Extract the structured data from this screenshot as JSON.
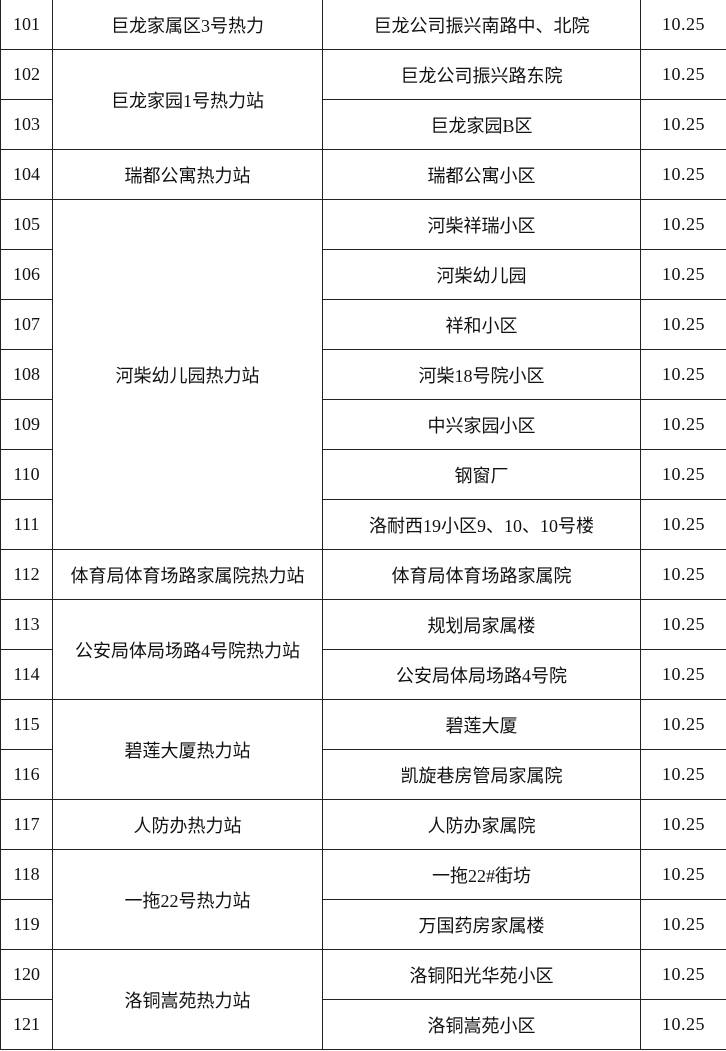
{
  "groups": [
    {
      "station": "巨龙家属区3号热力",
      "items": [
        {
          "no": "101",
          "community": "巨龙公司振兴南路中、北院",
          "value": "10.25"
        }
      ]
    },
    {
      "station": "巨龙家园1号热力站",
      "items": [
        {
          "no": "102",
          "community": "巨龙公司振兴路东院",
          "value": "10.25"
        },
        {
          "no": "103",
          "community": "巨龙家园B区",
          "value": "10.25"
        }
      ]
    },
    {
      "station": "瑞都公寓热力站",
      "items": [
        {
          "no": "104",
          "community": "瑞都公寓小区",
          "value": "10.25"
        }
      ]
    },
    {
      "station": "河柴幼儿园热力站",
      "items": [
        {
          "no": "105",
          "community": "河柴祥瑞小区",
          "value": "10.25"
        },
        {
          "no": "106",
          "community": "河柴幼儿园",
          "value": "10.25"
        },
        {
          "no": "107",
          "community": "祥和小区",
          "value": "10.25"
        },
        {
          "no": "108",
          "community": "河柴18号院小区",
          "value": "10.25"
        },
        {
          "no": "109",
          "community": "中兴家园小区",
          "value": "10.25"
        },
        {
          "no": "110",
          "community": "钢窗厂",
          "value": "10.25"
        },
        {
          "no": "111",
          "community": "洛耐西19小区9、10、10号楼",
          "value": "10.25"
        }
      ]
    },
    {
      "station": "体育局体育场路家属院热力站",
      "items": [
        {
          "no": "112",
          "community": "体育局体育场路家属院",
          "value": "10.25"
        }
      ]
    },
    {
      "station": "公安局体局场路4号院热力站",
      "items": [
        {
          "no": "113",
          "community": "规划局家属楼",
          "value": "10.25"
        },
        {
          "no": "114",
          "community": "公安局体局场路4号院",
          "value": "10.25"
        }
      ]
    },
    {
      "station": "碧莲大厦热力站",
      "items": [
        {
          "no": "115",
          "community": "碧莲大厦",
          "value": "10.25"
        },
        {
          "no": "116",
          "community": "凯旋巷房管局家属院",
          "value": "10.25"
        }
      ]
    },
    {
      "station": "人防办热力站",
      "items": [
        {
          "no": "117",
          "community": "人防办家属院",
          "value": "10.25"
        }
      ]
    },
    {
      "station": "一拖22号热力站",
      "items": [
        {
          "no": "118",
          "community": "一拖22#街坊",
          "value": "10.25"
        },
        {
          "no": "119",
          "community": "万国药房家属楼",
          "value": "10.25"
        }
      ]
    },
    {
      "station": "洛铜嵩苑热力站",
      "items": [
        {
          "no": "120",
          "community": "洛铜阳光华苑小区",
          "value": "10.25"
        },
        {
          "no": "121",
          "community": "洛铜嵩苑小区",
          "value": "10.25"
        }
      ]
    }
  ]
}
